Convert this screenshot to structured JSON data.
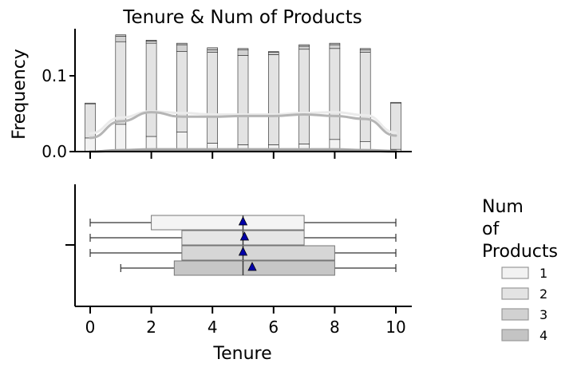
{
  "chart_data": {
    "type": "histogram+boxplot",
    "title": "Tenure & Num of Products",
    "xlabel": "Tenure",
    "ylabel": "Frequency",
    "xlim": [
      -0.5,
      10.5
    ],
    "x_ticks": [
      "0",
      "2",
      "4",
      "6",
      "8",
      "10"
    ],
    "hist": {
      "ylim": [
        0,
        0.16
      ],
      "y_ticks": [
        {
          "value": 0.0,
          "label": "0.0"
        },
        {
          "value": 0.1,
          "label": "0.1"
        }
      ],
      "tenure": [
        0,
        1,
        2,
        3,
        4,
        5,
        6,
        7,
        8,
        9,
        10
      ],
      "series": [
        {
          "category": "1",
          "color": "#f2f2f2",
          "values": [
            0.018,
            0.036,
            0.02,
            0.026,
            0.011,
            0.009,
            0.009,
            0.01,
            0.016,
            0.013,
            0.003
          ]
        },
        {
          "category": "2",
          "color": "#e3e3e3",
          "values": [
            0.045,
            0.109,
            0.123,
            0.106,
            0.12,
            0.118,
            0.119,
            0.125,
            0.12,
            0.118,
            0.061
          ]
        },
        {
          "category": "3",
          "color": "#d1d1d1",
          "values": [
            0.0,
            0.007,
            0.003,
            0.009,
            0.003,
            0.007,
            0.003,
            0.004,
            0.005,
            0.003,
            0.0
          ]
        },
        {
          "category": "4",
          "color": "#c4c4c4",
          "values": [
            0.001,
            0.002,
            0.001,
            0.002,
            0.003,
            0.002,
            0.001,
            0.002,
            0.002,
            0.002,
            0.001
          ]
        }
      ],
      "kde": [
        {
          "category": "1",
          "color": "#ebebeb",
          "values": [
            0.024,
            0.045,
            0.053,
            0.051,
            0.049,
            0.049,
            0.049,
            0.051,
            0.052,
            0.048,
            0.025
          ]
        },
        {
          "category": "2",
          "color": "#b5b5b5",
          "values": [
            0.018,
            0.04,
            0.052,
            0.046,
            0.046,
            0.047,
            0.047,
            0.049,
            0.047,
            0.043,
            0.021
          ]
        },
        {
          "category": "3",
          "color": "#a9a9a9",
          "values": [
            0.0,
            0.002,
            0.003,
            0.003,
            0.003,
            0.003,
            0.003,
            0.003,
            0.003,
            0.002,
            0.001
          ]
        },
        {
          "category": "4",
          "color": "#9a9a9a",
          "values": [
            0.0,
            0.001,
            0.001,
            0.001,
            0.001,
            0.001,
            0.001,
            0.001,
            0.001,
            0.001,
            0.0
          ]
        }
      ]
    },
    "boxplot": {
      "groups": [
        {
          "category": "1",
          "color": "#f4f4f4",
          "min": 0,
          "q1": 2,
          "median": 5,
          "q3": 7,
          "max": 10,
          "mean": 5.0
        },
        {
          "category": "2",
          "color": "#e6e6e6",
          "min": 0,
          "q1": 3,
          "median": 5,
          "q3": 7,
          "max": 10,
          "mean": 5.05
        },
        {
          "category": "3",
          "color": "#d6d6d6",
          "min": 0,
          "q1": 3,
          "median": 5,
          "q3": 8,
          "max": 10,
          "mean": 5.0
        },
        {
          "category": "4",
          "color": "#c6c6c6",
          "min": 1,
          "q1": 2.75,
          "median": 5,
          "q3": 8,
          "max": 10,
          "mean": 5.3
        }
      ],
      "mean_marker_color": "#0000aa"
    },
    "legend": {
      "title_lines": [
        "Num",
        "of",
        "Products"
      ],
      "placement": "right",
      "entries": [
        {
          "label": "1",
          "color": "#f2f2f2"
        },
        {
          "label": "2",
          "color": "#e3e3e3"
        },
        {
          "label": "3",
          "color": "#d1d1d1"
        },
        {
          "label": "4",
          "color": "#c4c4c4"
        }
      ]
    }
  }
}
